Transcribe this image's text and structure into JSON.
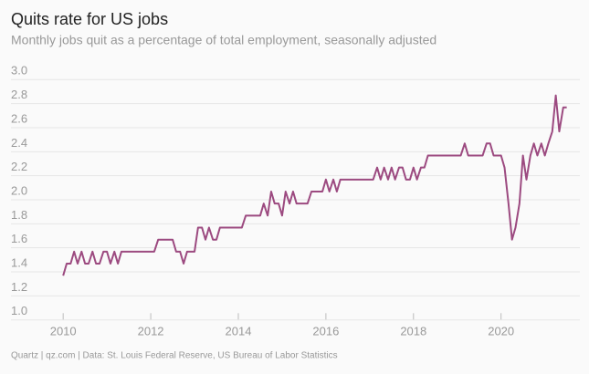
{
  "chart_data": {
    "type": "line",
    "title": "Quits rate for US jobs",
    "subtitle": "Monthly jobs quit as a percentage of total employment, seasonally adjusted",
    "source": "Quartz | qz.com | Data: St. Louis Federal Reserve, US Bureau of Labor Statistics",
    "color": "#9c4a80",
    "grid": true,
    "xlim": [
      2009.6,
      2021.8
    ],
    "xticks": [
      2010,
      2012,
      2014,
      2016,
      2018,
      2020
    ],
    "ylim": [
      0.95,
      3.05
    ],
    "yticks": [
      {
        "value": 1.0,
        "label": "1.0"
      },
      {
        "value": 1.2,
        "label": "1.2"
      },
      {
        "value": 1.4,
        "label": "1.4"
      },
      {
        "value": 1.6,
        "label": "1.6"
      },
      {
        "value": 1.8,
        "label": "1.8"
      },
      {
        "value": 2.0,
        "label": "2.0"
      },
      {
        "value": 2.2,
        "label": "2.2"
      },
      {
        "value": 2.4,
        "label": "2.4"
      },
      {
        "value": 2.6,
        "label": "2.6"
      },
      {
        "value": 2.8,
        "label": "2.8"
      },
      {
        "value": 3.0,
        "label": "3.0"
      }
    ],
    "x": [
      2010,
      2010.08,
      2010.17,
      2010.25,
      2010.33,
      2010.42,
      2010.5,
      2010.58,
      2010.67,
      2010.75,
      2010.83,
      2010.92,
      2011,
      2011.08,
      2011.17,
      2011.25,
      2011.33,
      2011.42,
      2011.5,
      2011.58,
      2011.67,
      2011.75,
      2011.83,
      2011.92,
      2012,
      2012.08,
      2012.17,
      2012.25,
      2012.33,
      2012.42,
      2012.5,
      2012.58,
      2012.67,
      2012.75,
      2012.83,
      2012.92,
      2013,
      2013.08,
      2013.17,
      2013.25,
      2013.33,
      2013.42,
      2013.5,
      2013.58,
      2013.67,
      2013.75,
      2013.83,
      2013.92,
      2014,
      2014.08,
      2014.17,
      2014.25,
      2014.33,
      2014.42,
      2014.5,
      2014.58,
      2014.67,
      2014.75,
      2014.83,
      2014.92,
      2015,
      2015.08,
      2015.17,
      2015.25,
      2015.33,
      2015.42,
      2015.5,
      2015.58,
      2015.67,
      2015.75,
      2015.83,
      2015.92,
      2016,
      2016.08,
      2016.17,
      2016.25,
      2016.33,
      2016.42,
      2016.5,
      2016.58,
      2016.67,
      2016.75,
      2016.83,
      2016.92,
      2017,
      2017.08,
      2017.17,
      2017.25,
      2017.33,
      2017.42,
      2017.5,
      2017.58,
      2017.67,
      2017.75,
      2017.83,
      2017.92,
      2018,
      2018.08,
      2018.17,
      2018.25,
      2018.33,
      2018.42,
      2018.5,
      2018.58,
      2018.67,
      2018.75,
      2018.83,
      2018.92,
      2019,
      2019.08,
      2019.17,
      2019.25,
      2019.33,
      2019.42,
      2019.5,
      2019.58,
      2019.67,
      2019.75,
      2019.83,
      2019.92,
      2020,
      2020.08,
      2020.17,
      2020.25,
      2020.33,
      2020.42,
      2020.5,
      2020.58,
      2020.67,
      2020.75,
      2020.83,
      2020.92,
      2021,
      2021.08,
      2021.17,
      2021.25,
      2021.33,
      2021.42,
      2021.5
    ],
    "values": [
      1.3,
      1.4,
      1.4,
      1.5,
      1.4,
      1.5,
      1.4,
      1.4,
      1.5,
      1.4,
      1.4,
      1.5,
      1.5,
      1.4,
      1.5,
      1.4,
      1.5,
      1.5,
      1.5,
      1.5,
      1.5,
      1.5,
      1.5,
      1.5,
      1.5,
      1.5,
      1.6,
      1.6,
      1.6,
      1.6,
      1.6,
      1.5,
      1.5,
      1.4,
      1.5,
      1.5,
      1.5,
      1.7,
      1.7,
      1.6,
      1.7,
      1.6,
      1.6,
      1.7,
      1.7,
      1.7,
      1.7,
      1.7,
      1.7,
      1.7,
      1.8,
      1.8,
      1.8,
      1.8,
      1.8,
      1.9,
      1.8,
      2.0,
      1.9,
      1.9,
      1.8,
      2.0,
      1.9,
      2.0,
      1.9,
      1.9,
      1.9,
      1.9,
      2.0,
      2.0,
      2.0,
      2.0,
      2.1,
      2.0,
      2.1,
      2.0,
      2.1,
      2.1,
      2.1,
      2.1,
      2.1,
      2.1,
      2.1,
      2.1,
      2.1,
      2.1,
      2.2,
      2.1,
      2.2,
      2.1,
      2.2,
      2.1,
      2.2,
      2.2,
      2.1,
      2.1,
      2.2,
      2.1,
      2.2,
      2.2,
      2.3,
      2.3,
      2.3,
      2.3,
      2.3,
      2.3,
      2.3,
      2.3,
      2.3,
      2.3,
      2.4,
      2.3,
      2.3,
      2.3,
      2.3,
      2.3,
      2.4,
      2.4,
      2.3,
      2.3,
      2.3,
      2.2,
      1.9,
      1.6,
      1.7,
      1.9,
      2.3,
      2.1,
      2.3,
      2.4,
      2.3,
      2.4,
      2.3,
      2.4,
      2.5,
      2.8,
      2.5,
      2.7,
      2.7
    ]
  }
}
